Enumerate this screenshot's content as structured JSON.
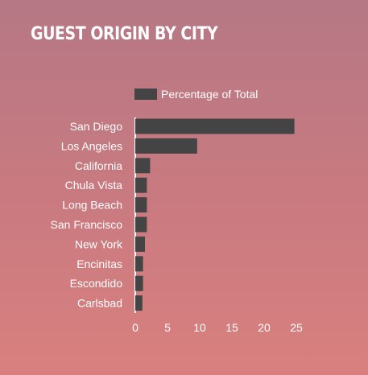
{
  "chart_data": {
    "type": "bar",
    "orientation": "horizontal",
    "title": "GUEST ORIGIN BY CITY",
    "categories": [
      "San Diego",
      "Los Angeles",
      "California",
      "Chula Vista",
      "Long Beach",
      "San Francisco",
      "New York",
      "Encinitas",
      "Escondido",
      "Carlsbad"
    ],
    "series": [
      {
        "name": "Percentage of Total",
        "values": [
          24.7,
          9.6,
          2.3,
          1.8,
          1.8,
          1.8,
          1.5,
          1.2,
          1.2,
          1.1
        ]
      }
    ],
    "xticks": [
      "0",
      "5",
      "10",
      "15",
      "20",
      "25"
    ],
    "xlim": [
      0,
      25
    ],
    "legend": "top",
    "grid": false,
    "bar_color": "#444444"
  }
}
